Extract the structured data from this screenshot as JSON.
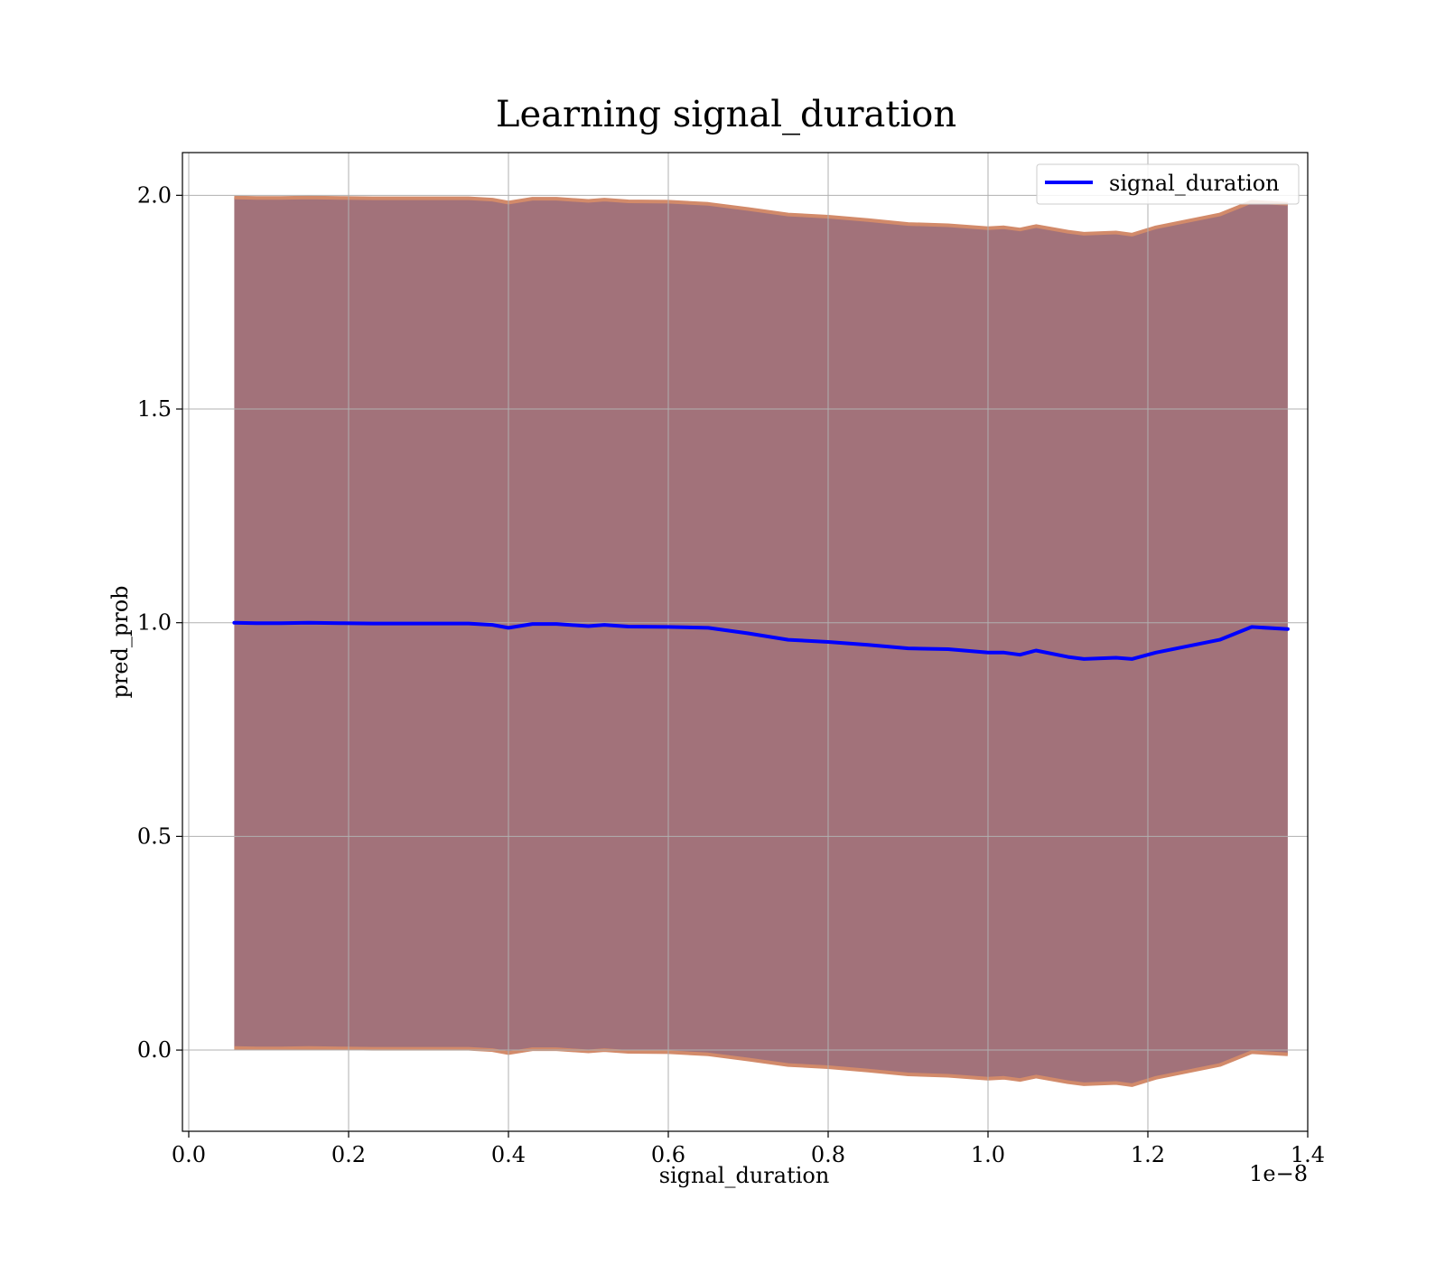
{
  "chart_data": {
    "type": "line",
    "title": "Learning signal_duration",
    "xlabel": "signal_duration",
    "ylabel": "pred_prob",
    "x_offset_text": "1e−8",
    "x_scale_factor": 1e-08,
    "xlim": [
      -0.0079,
      1.4
    ],
    "ylim": [
      -0.19,
      2.1
    ],
    "x_ticks": [
      0.0,
      0.2,
      0.4,
      0.6,
      0.8,
      1.0,
      1.2,
      1.4
    ],
    "x_tick_labels": [
      "0.0",
      "0.2",
      "0.4",
      "0.6",
      "0.8",
      "1.0",
      "1.2",
      "1.4"
    ],
    "y_ticks": [
      0.0,
      0.5,
      1.0,
      1.5,
      2.0
    ],
    "y_tick_labels": [
      "0.0",
      "0.5",
      "1.0",
      "1.5",
      "2.0"
    ],
    "grid": true,
    "legend_position": "top-right",
    "colors": {
      "line": "#0000ff",
      "band_fill": "#a2727a",
      "band_edge": "#d28a6a",
      "grid": "#b0b0b0",
      "axes": "#000000"
    },
    "series": [
      {
        "name": "signal_duration",
        "x": [
          0.057,
          0.085,
          0.115,
          0.15,
          0.19,
          0.23,
          0.27,
          0.31,
          0.35,
          0.38,
          0.4,
          0.43,
          0.46,
          0.5,
          0.52,
          0.55,
          0.6,
          0.65,
          0.7,
          0.75,
          0.8,
          0.85,
          0.9,
          0.95,
          1.0,
          1.02,
          1.04,
          1.06,
          1.1,
          1.12,
          1.16,
          1.18,
          1.21,
          1.25,
          1.29,
          1.33,
          1.375
        ],
        "values": [
          1.0,
          0.999,
          0.999,
          1.0,
          0.999,
          0.998,
          0.998,
          0.998,
          0.998,
          0.995,
          0.988,
          0.997,
          0.997,
          0.992,
          0.995,
          0.991,
          0.99,
          0.988,
          0.975,
          0.96,
          0.955,
          0.948,
          0.94,
          0.938,
          0.93,
          0.93,
          0.925,
          0.935,
          0.92,
          0.915,
          0.918,
          0.915,
          0.93,
          0.945,
          0.96,
          0.99,
          0.985
        ],
        "band_lower": [
          0.005,
          0.004,
          0.004,
          0.005,
          0.004,
          0.003,
          0.003,
          0.003,
          0.003,
          0.0,
          -0.007,
          0.002,
          0.002,
          -0.003,
          0.0,
          -0.004,
          -0.005,
          -0.01,
          -0.022,
          -0.035,
          -0.04,
          -0.048,
          -0.057,
          -0.06,
          -0.067,
          -0.065,
          -0.07,
          -0.062,
          -0.075,
          -0.08,
          -0.077,
          -0.082,
          -0.065,
          -0.05,
          -0.035,
          -0.005,
          -0.01
        ],
        "band_upper": [
          1.995,
          1.994,
          1.994,
          1.995,
          1.994,
          1.993,
          1.993,
          1.993,
          1.993,
          1.99,
          1.983,
          1.992,
          1.992,
          1.987,
          1.99,
          1.986,
          1.985,
          1.98,
          1.968,
          1.955,
          1.95,
          1.942,
          1.933,
          1.93,
          1.923,
          1.925,
          1.92,
          1.928,
          1.915,
          1.91,
          1.913,
          1.908,
          1.925,
          1.94,
          1.955,
          1.985,
          1.98
        ]
      }
    ]
  }
}
